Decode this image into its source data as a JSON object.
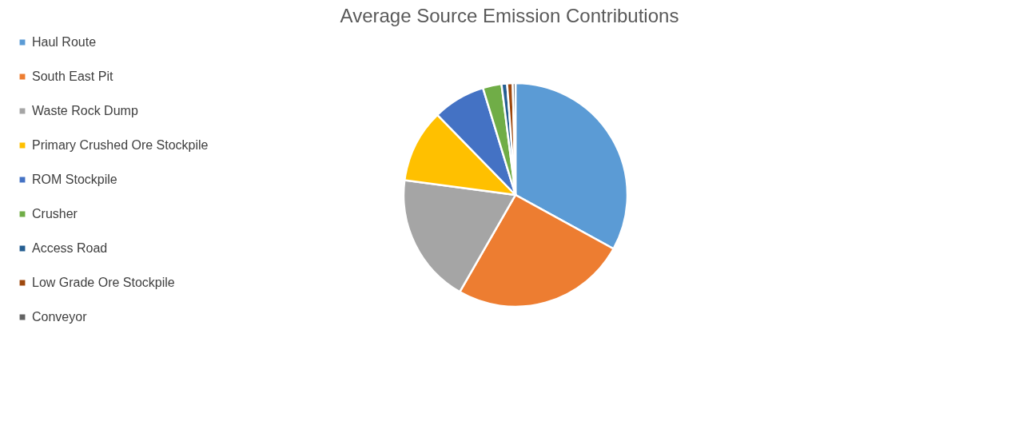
{
  "chart_data": {
    "type": "pie",
    "title": "Average Source Emission Contributions",
    "categories": [
      "Haul Route",
      "South East Pit",
      "Waste Rock Dump",
      "Primary Crushed Ore Stockpile",
      "ROM Stockpile",
      "Crusher",
      "Access Road",
      "Low Grade Ore Stockpile",
      "Conveyor"
    ],
    "values": [
      33.0,
      25.3,
      18.8,
      10.6,
      7.6,
      2.7,
      0.8,
      0.8,
      0.4
    ],
    "colors": [
      "#5b9bd5",
      "#ed7d31",
      "#a5a5a5",
      "#ffc000",
      "#4472c4",
      "#70ad47",
      "#255e91",
      "#9e480e",
      "#636363"
    ],
    "legend": "left"
  }
}
